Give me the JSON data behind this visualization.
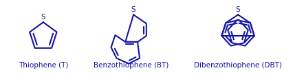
{
  "color": "#1515a0",
  "bg_color": "#ffffff",
  "lw": 1.5,
  "label_fontsize": 7.5,
  "s_fontsize": 7.5,
  "labels": [
    "Thiophene (T)",
    "Benzothiophene (BT)",
    "Dibenzothiophene (DBT)"
  ],
  "figsize": [
    4.27,
    1.09
  ],
  "dpi": 100
}
